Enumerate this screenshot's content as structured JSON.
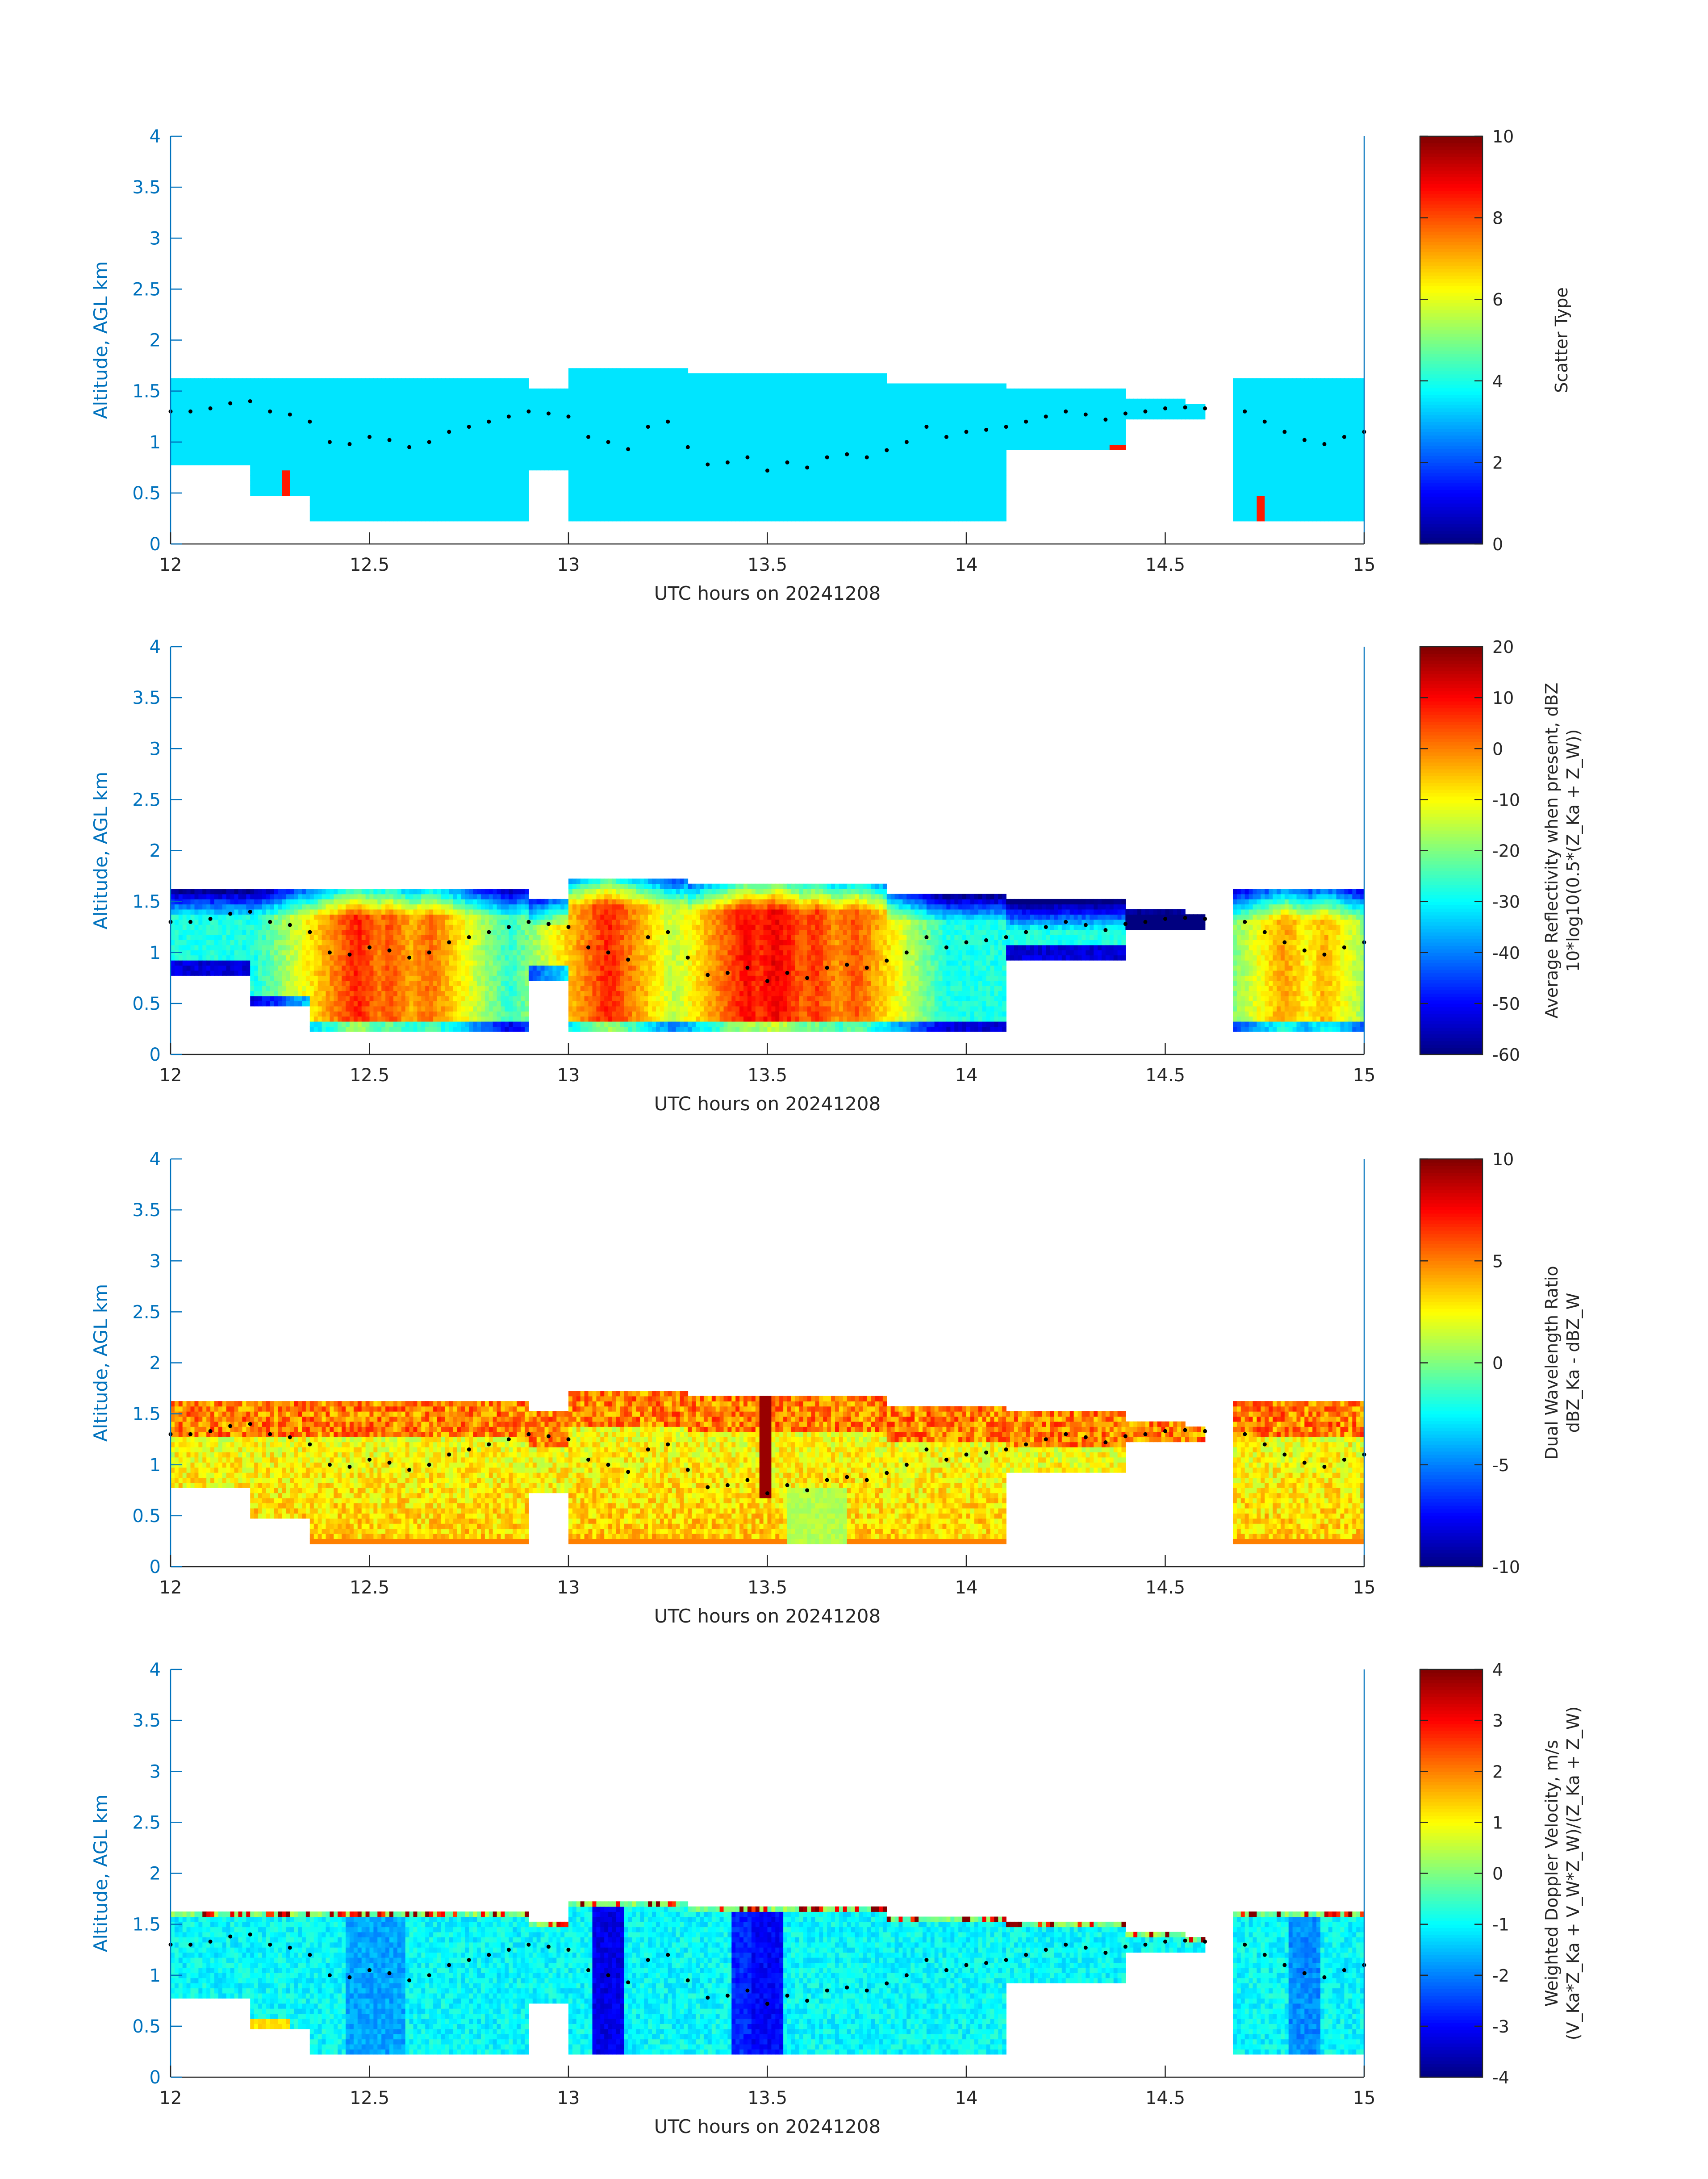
{
  "colors": {
    "axis_left": "#0072bd",
    "axis_bottom": "#262626",
    "cloud_base_dots": "#000000"
  },
  "chart_data": [
    {
      "type": "heatmap",
      "xlabel": "UTC hours on 20241208",
      "ylabel": "Altitude, AGL km",
      "xlim": [
        12,
        15
      ],
      "ylim": [
        0,
        4
      ],
      "xticks": [
        "12",
        "12.5",
        "13",
        "13.5",
        "14",
        "14.5",
        "15"
      ],
      "yticks": [
        "0",
        "0.5",
        "1",
        "1.5",
        "2",
        "2.5",
        "3",
        "3.5",
        "4"
      ],
      "colorbar": {
        "label_lines": [
          "Scatter Type"
        ],
        "range": [
          0,
          10
        ],
        "ticks": [
          "0",
          "2",
          "4",
          "6",
          "8",
          "10"
        ]
      },
      "colormap": "jet",
      "field": "scatter_type",
      "description_of_values": "uniform value ~3.5 (cyan) throughout echo region; value ~8.5 in a few small patches"
    },
    {
      "type": "heatmap",
      "xlabel": "UTC hours on 20241208",
      "ylabel": "Altitude, AGL km",
      "xlim": [
        12,
        15
      ],
      "ylim": [
        0,
        4
      ],
      "xticks": [
        "12",
        "12.5",
        "13",
        "13.5",
        "14",
        "14.5",
        "15"
      ],
      "yticks": [
        "0",
        "0.5",
        "1",
        "1.5",
        "2",
        "2.5",
        "3",
        "3.5",
        "4"
      ],
      "colorbar": {
        "label_lines": [
          "Average Reflectivity when present, dBZ",
          "10*log10(0.5*(Z_Ka + Z_W))"
        ],
        "range": [
          -60,
          20
        ],
        "ticks": [
          "-60",
          "-50",
          "-40",
          "-30",
          "-20",
          "-10",
          "0",
          "10",
          "20"
        ]
      },
      "colormap": "jet",
      "field": "reflectivity"
    },
    {
      "type": "heatmap",
      "xlabel": "UTC hours on 20241208",
      "ylabel": "Altitude, AGL km",
      "xlim": [
        12,
        15
      ],
      "ylim": [
        0,
        4
      ],
      "xticks": [
        "12",
        "12.5",
        "13",
        "13.5",
        "14",
        "14.5",
        "15"
      ],
      "yticks": [
        "0",
        "0.5",
        "1",
        "1.5",
        "2",
        "2.5",
        "3",
        "3.5",
        "4"
      ],
      "colorbar": {
        "label_lines": [
          "Dual Wavelength Ratio",
          "dBZ_Ka - dBZ_W"
        ],
        "range": [
          -10,
          10
        ],
        "ticks": [
          "-10",
          "-5",
          "0",
          "5",
          "10"
        ]
      },
      "colormap": "jet",
      "field": "dwr"
    },
    {
      "type": "heatmap",
      "xlabel": "UTC hours on 20241208",
      "ylabel": "Altitude, AGL km",
      "xlim": [
        12,
        15
      ],
      "ylim": [
        0,
        4
      ],
      "xticks": [
        "12",
        "12.5",
        "13",
        "13.5",
        "14",
        "14.5",
        "15"
      ],
      "yticks": [
        "0",
        "0.5",
        "1",
        "1.5",
        "2",
        "2.5",
        "3",
        "3.5",
        "4"
      ],
      "colorbar": {
        "label_lines": [
          "Weighted Doppler Velocity, m/s",
          "(V_Ka*Z_Ka + V_W*Z_W)/(Z_Ka + Z_W)"
        ],
        "range": [
          -4,
          4
        ],
        "ticks": [
          "-4",
          "-3",
          "-2",
          "-1",
          "0",
          "1",
          "2",
          "3",
          "4"
        ]
      },
      "colormap": "jet",
      "field": "velocity"
    }
  ],
  "cloud_base": {
    "t": [
      12.0,
      12.05,
      12.1,
      12.15,
      12.2,
      12.25,
      12.3,
      12.35,
      12.4,
      12.45,
      12.5,
      12.55,
      12.6,
      12.65,
      12.7,
      12.75,
      12.8,
      12.85,
      12.9,
      12.95,
      13.0,
      13.05,
      13.1,
      13.15,
      13.2,
      13.25,
      13.3,
      13.35,
      13.4,
      13.45,
      13.5,
      13.55,
      13.6,
      13.65,
      13.7,
      13.75,
      13.8,
      13.85,
      13.9,
      13.95,
      14.0,
      14.05,
      14.1,
      14.15,
      14.2,
      14.25,
      14.3,
      14.35,
      14.4,
      14.45,
      14.5,
      14.55,
      14.6,
      14.65,
      14.7,
      14.75,
      14.8,
      14.85,
      14.9,
      14.95,
      15.0
    ],
    "alt": [
      1.3,
      1.3,
      1.33,
      1.38,
      1.4,
      1.3,
      1.27,
      1.2,
      1.0,
      0.98,
      1.05,
      1.02,
      0.95,
      1.0,
      1.1,
      1.15,
      1.2,
      1.25,
      1.3,
      1.28,
      1.25,
      1.05,
      1.0,
      0.93,
      1.15,
      1.2,
      0.95,
      0.78,
      0.8,
      0.85,
      0.72,
      0.8,
      0.75,
      0.85,
      0.88,
      0.85,
      0.92,
      1.0,
      1.15,
      1.05,
      1.1,
      1.12,
      1.15,
      1.2,
      1.25,
      1.3,
      1.27,
      1.22,
      1.28,
      1.3,
      1.33,
      1.34,
      1.33,
      null,
      1.3,
      1.2,
      1.1,
      1.02,
      0.98,
      1.05,
      1.1
    ]
  },
  "time_blocks": [
    {
      "t0": 12.0,
      "t1": 12.9,
      "top": 1.65
    },
    {
      "t0": 12.9,
      "t1": 13.0,
      "top": 1.55
    },
    {
      "t0": 13.0,
      "t1": 13.3,
      "top": 1.75
    },
    {
      "t0": 13.3,
      "t1": 13.8,
      "top": 1.7
    },
    {
      "t0": 13.8,
      "t1": 14.1,
      "top": 1.6
    },
    {
      "t0": 14.1,
      "t1": 14.4,
      "top": 1.52
    },
    {
      "t0": 14.4,
      "t1": 14.55,
      "top": 1.45
    },
    {
      "t0": 14.55,
      "t1": 14.6,
      "top": 1.4
    },
    {
      "t0": 14.67,
      "t1": 15.0,
      "top": 1.62
    }
  ]
}
